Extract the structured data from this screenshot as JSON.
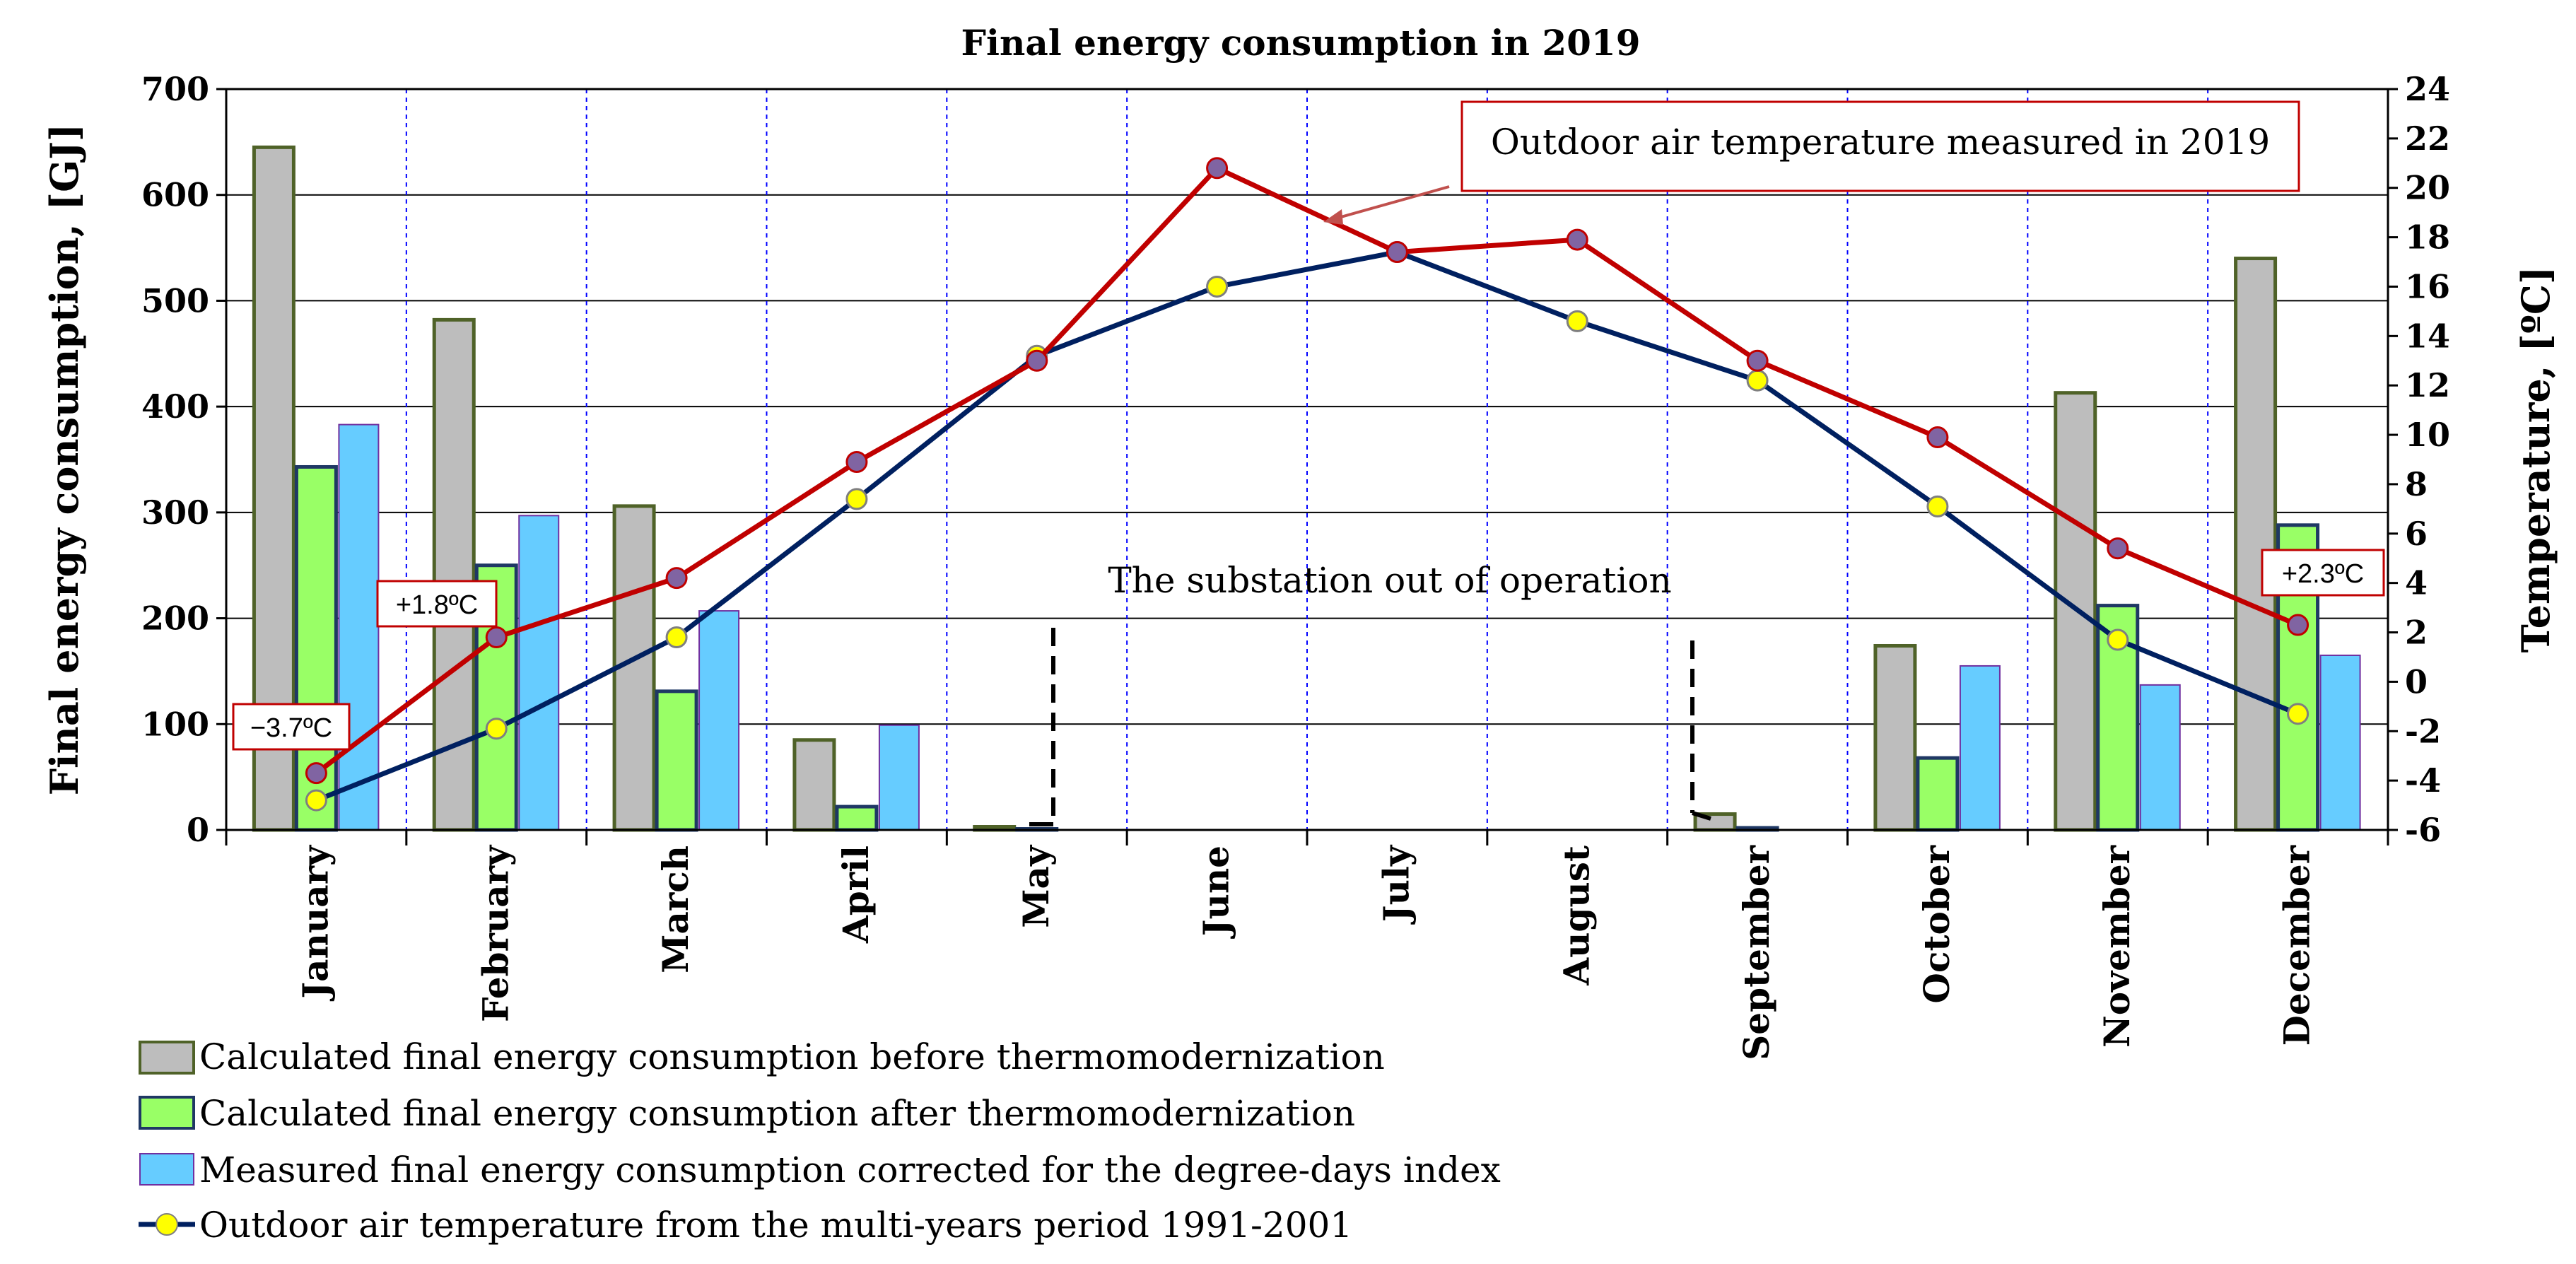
{
  "chart_data": {
    "type": "bar",
    "title": "Final energy consumption in 2019",
    "ylabel": "Final energy consumption,  [GJ]",
    "y2label": "Temperature, [ºC]",
    "ylim": [
      0,
      700
    ],
    "y2lim": [
      -6,
      24
    ],
    "yticks": [
      "0",
      "100",
      "200",
      "300",
      "400",
      "500",
      "600",
      "700"
    ],
    "y2ticks": [
      "-6",
      "-4",
      "-2",
      "0",
      "2",
      "4",
      "6",
      "8",
      "10",
      "12",
      "14",
      "16",
      "18",
      "20",
      "22",
      "24"
    ],
    "categories": [
      "January",
      "February",
      "March",
      "April",
      "May",
      "June",
      "July",
      "August",
      "September",
      "October",
      "November",
      "December"
    ],
    "series": [
      {
        "name": "Calculated final energy consumption before thermomodernization",
        "kind": "bar",
        "color": "#bdbdbd",
        "border": "#4f6228",
        "values": [
          645,
          482,
          306,
          85,
          3,
          0,
          0,
          0,
          15,
          174,
          413,
          540
        ]
      },
      {
        "name": "Calculated final energy consumption after thermomodernization",
        "kind": "bar",
        "color": "#99ff66",
        "border": "#1f3864",
        "values": [
          343,
          250,
          131,
          22,
          1,
          0,
          0,
          0,
          2,
          68,
          212,
          288
        ]
      },
      {
        "name": "Measured final energy consumption corrected for the degree-days index",
        "kind": "bar",
        "color": "#66ccff",
        "border": "#7030a0",
        "values": [
          383,
          297,
          207,
          99,
          0,
          0,
          0,
          0,
          0,
          155,
          137,
          165
        ]
      },
      {
        "name": "Outdoor air temperature from the multi-years period 1991-2001",
        "kind": "line",
        "axis": "right",
        "color": "#002060",
        "marker": "#ffff00",
        "values": [
          -4.8,
          -1.9,
          1.8,
          7.4,
          13.2,
          16.0,
          17.4,
          14.6,
          12.2,
          7.1,
          1.7,
          -1.3
        ]
      },
      {
        "name": "Outdoor air temperature measured in 2019",
        "kind": "line",
        "axis": "right",
        "color": "#c00000",
        "marker": "#8064a2",
        "values": [
          -3.7,
          1.8,
          4.2,
          8.9,
          13.0,
          20.8,
          17.4,
          17.9,
          13.0,
          9.9,
          5.4,
          2.3
        ]
      }
    ],
    "annotations": {
      "callout": "Outdoor air temperature measured in 2019",
      "out_of_operation": "The substation out of operation",
      "labels": [
        {
          "text": "−3.7ºC",
          "month": "January"
        },
        {
          "text": "+1.8ºC",
          "month": "February"
        },
        {
          "text": "+2.3ºC",
          "month": "December"
        }
      ]
    }
  }
}
